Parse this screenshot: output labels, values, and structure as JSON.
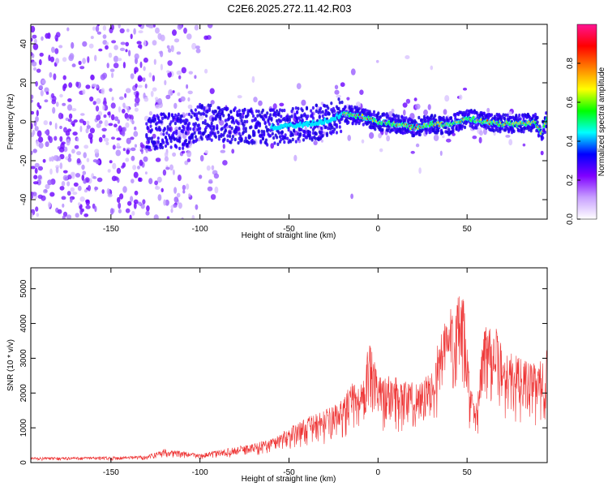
{
  "title": "C2E6.2025.272.11.42.R03",
  "chart_data": [
    {
      "type": "heatmap",
      "xlabel": "Height of straight line (km)",
      "ylabel": "Frequency (Hz)",
      "xlim": [
        -195,
        95
      ],
      "ylim": [
        -50,
        50
      ],
      "xticks": [
        -150,
        -100,
        -50,
        0,
        50
      ],
      "yticks": [
        -40,
        -20,
        0,
        20,
        40
      ],
      "colorbar": {
        "label": "Normalized spectral amplitude",
        "range": [
          0.0,
          1.0
        ],
        "ticks": [
          "0.0",
          "0.2",
          "0.4",
          "0.6",
          "0.8"
        ],
        "colors": [
          "#ffffff",
          "#c8a0ff",
          "#7f00ff",
          "#0000ff",
          "#00ffff",
          "#00ff00",
          "#ffff00",
          "#ff7f00",
          "#ff0000",
          "#ff1493"
        ]
      },
      "ridge": {
        "x": [
          -130,
          -110,
          -100,
          -80,
          -60,
          -40,
          -30,
          -20,
          -10,
          0,
          10,
          20,
          30,
          40,
          50,
          60,
          70,
          80,
          88,
          92,
          95
        ],
        "y": [
          -5,
          -5,
          0,
          -2,
          -3,
          -1,
          0,
          4,
          3,
          0,
          -1,
          -3,
          -1,
          -2,
          2,
          0,
          -1,
          -1,
          0,
          -6,
          2
        ]
      }
    },
    {
      "type": "line",
      "xlabel": "Height of straight line (km)",
      "ylabel": "SNR (10 * v/v)",
      "xlim": [
        -195,
        95
      ],
      "ylim": [
        0,
        5600
      ],
      "xticks": [
        -150,
        -100,
        -50,
        0,
        50
      ],
      "yticks": [
        0,
        1000,
        2000,
        3000,
        4000,
        5000
      ],
      "color": "#ee3333",
      "envelope": {
        "x": [
          -195,
          -150,
          -130,
          -120,
          -100,
          -90,
          -80,
          -70,
          -60,
          -50,
          -40,
          -30,
          -20,
          -15,
          -10,
          -5,
          0,
          10,
          20,
          30,
          35,
          40,
          45,
          48,
          52,
          55,
          60,
          65,
          70,
          80,
          90,
          95
        ],
        "y": [
          150,
          170,
          200,
          400,
          250,
          350,
          450,
          550,
          700,
          1000,
          1300,
          1500,
          1800,
          2300,
          2200,
          3500,
          2500,
          2500,
          2300,
          2600,
          3800,
          4500,
          4800,
          4700,
          2200,
          1600,
          4200,
          4100,
          3300,
          3000,
          2800,
          3300
        ]
      }
    }
  ]
}
